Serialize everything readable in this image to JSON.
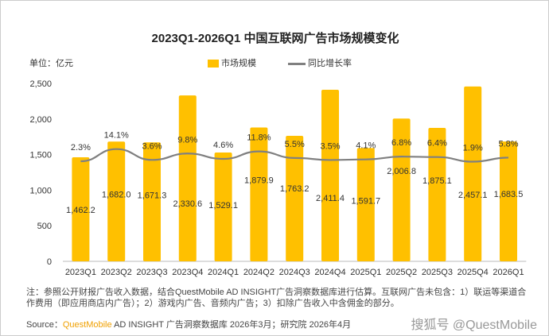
{
  "chart_data": {
    "type": "bar",
    "title": "2023Q1-2026Q1 中国互联网广告市场规模变化",
    "unit_label": "单位：亿元",
    "categories": [
      "2023Q1",
      "2023Q2",
      "2023Q3",
      "2023Q4",
      "2024Q1",
      "2024Q2",
      "2024Q3",
      "2024Q4",
      "2025Q1",
      "2025Q2",
      "2025Q3",
      "2025Q4",
      "2026Q1"
    ],
    "series": [
      {
        "name": "市场规模",
        "type": "bar",
        "color": "#ffc000",
        "values": [
          1462.2,
          1682.0,
          1671.3,
          2330.6,
          1529.1,
          1879.9,
          1763.2,
          2411.4,
          1591.7,
          2006.8,
          1875.1,
          2457.1,
          1683.5
        ],
        "labels": [
          "1,462.2",
          "1,682.0",
          "1,671.3",
          "2,330.6",
          "1,529.1",
          "1,879.9",
          "1,763.2",
          "2,411.4",
          "1,591.7",
          "2,006.8",
          "1,875.1",
          "2,457.1",
          "1,683.5"
        ]
      },
      {
        "name": "同比增长率",
        "type": "line",
        "color": "#808080",
        "values": [
          2.3,
          14.1,
          3.6,
          9.8,
          4.6,
          11.8,
          5.5,
          3.5,
          4.1,
          6.8,
          6.4,
          1.9,
          5.8
        ],
        "labels": [
          "2.3%",
          "14.1%",
          "3.6%",
          "9.8%",
          "4.6%",
          "11.8%",
          "5.5%",
          "3.5%",
          "4.1%",
          "6.8%",
          "6.4%",
          "1.9%",
          "5.8%"
        ]
      }
    ],
    "yticks": [
      "0",
      "500",
      "1,000",
      "1,500",
      "2,000",
      "2,500"
    ],
    "ylim": [
      0,
      2500
    ],
    "legend": "top"
  },
  "note": "注：参照公开财报广告收入数据，结合QuestMobile AD INSIGHT广告洞察数据库进行估算。互联网广告未包含：1）联运等渠道合作费用（即应用商店内广告）；2）游戏内广告、音频内广告；3）扣除广告收入中含佣金的部分。",
  "source": {
    "prefix": "Source：",
    "brand": "QuestMobile",
    "rest": " AD INSIGHT 广告洞察数据库 2026年3月；研究院 2026年4月"
  },
  "watermark": "搜狐号 @QuestMobile"
}
